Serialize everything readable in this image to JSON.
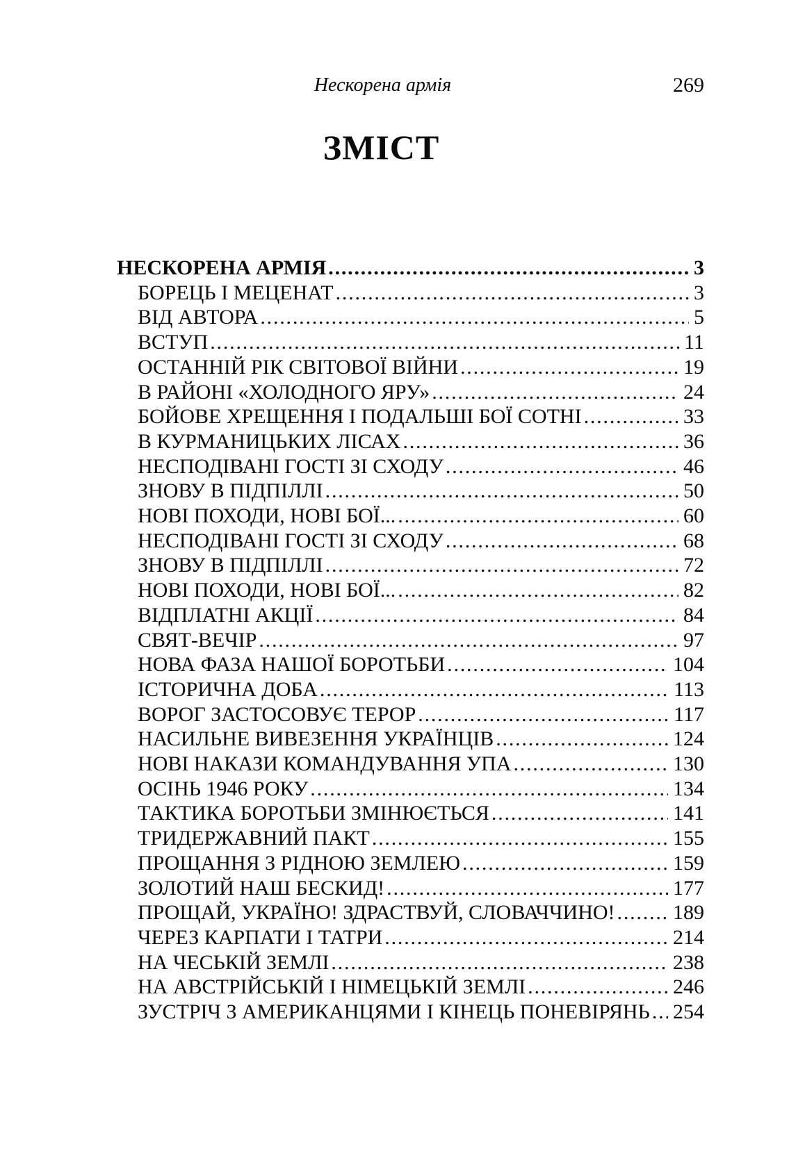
{
  "page": {
    "running_title": "Нескорена армія",
    "page_number": "269",
    "title": "ЗМІСТ"
  },
  "toc": {
    "entries": [
      {
        "label": "НЕСКОРЕНА АРМІЯ",
        "page": "3",
        "level": 0,
        "bold": true
      },
      {
        "label": "БОРЕЦЬ І МЕЦЕНАТ",
        "page": "3",
        "level": 1
      },
      {
        "label": "ВІД АВТОРА",
        "page": "5",
        "level": 1
      },
      {
        "label": "ВСТУП",
        "page": "11",
        "level": 1
      },
      {
        "label": "ОСТАННІЙ РІК СВІТОВОЇ ВІЙНИ",
        "page": "19",
        "level": 1
      },
      {
        "label": "В РАЙОНІ «ХОЛОДНОГО ЯРУ»",
        "page": "24",
        "level": 1
      },
      {
        "label": "БОЙОВЕ ХРЕЩЕННЯ І ПОДАЛЬШІ БОЇ СОТНІ",
        "page": "33",
        "level": 1
      },
      {
        "label": "В КУРМАНИЦЬКИХ ЛІСАХ",
        "page": "36",
        "level": 1
      },
      {
        "label": "НЕСПОДІВАНІ ГОСТІ ЗІ СХОДУ",
        "page": "46",
        "level": 1
      },
      {
        "label": "ЗНОВУ В ПІДПІЛЛІ",
        "page": "50",
        "level": 1
      },
      {
        "label": "НОВІ ПОХОДИ, НОВІ БОЇ...",
        "page": "60",
        "level": 1
      },
      {
        "label": "НЕСПОДІВАНІ ГОСТІ ЗІ СХОДУ",
        "page": "68",
        "level": 1
      },
      {
        "label": "ЗНОВУ В ПІДПІЛЛІ",
        "page": "72",
        "level": 1
      },
      {
        "label": "НОВІ ПОХОДИ, НОВІ БОЇ...",
        "page": "82",
        "level": 1
      },
      {
        "label": "ВІДПЛАТНІ АКЦІЇ",
        "page": "84",
        "level": 1
      },
      {
        "label": "СВЯТ-ВЕЧІР",
        "page": "97",
        "level": 1
      },
      {
        "label": "НОВА ФАЗА НАШОЇ БОРОТЬБИ",
        "page": "104",
        "level": 1
      },
      {
        "label": "ІСТОРИЧНА ДОБА",
        "page": "113",
        "level": 1
      },
      {
        "label": "ВОРОГ ЗАСТОСОВУЄ ТЕРОР",
        "page": "117",
        "level": 1
      },
      {
        "label": "НАСИЛЬНЕ ВИВЕЗЕННЯ УКРАЇНЦІВ",
        "page": "124",
        "level": 1
      },
      {
        "label": "НОВІ НАКАЗИ КОМАНДУВАННЯ УПА",
        "page": "130",
        "level": 1
      },
      {
        "label": "ОСІНЬ 1946 РОКУ",
        "page": "134",
        "level": 1
      },
      {
        "label": "ТАКТИКА БОРОТЬБИ ЗМІНЮЄТЬСЯ",
        "page": "141",
        "level": 1
      },
      {
        "label": "ТРИДЕРЖАВНИЙ ПАКТ",
        "page": "155",
        "level": 1
      },
      {
        "label": "ПРОЩАННЯ З РІДНОЮ ЗЕМЛЕЮ",
        "page": "159",
        "level": 1
      },
      {
        "label": "ЗОЛОТИЙ НАШ БЕСКИД!",
        "page": "177",
        "level": 1
      },
      {
        "label": "ПРОЩАЙ, УКРАЇНО! ЗДРАСТВУЙ, СЛОВАЧЧИНО!",
        "page": "189",
        "level": 1
      },
      {
        "label": "ЧЕРЕЗ КАРПАТИ І ТАТРИ",
        "page": "214",
        "level": 1
      },
      {
        "label": "НА ЧЕСЬКІЙ ЗЕМЛІ",
        "page": "238",
        "level": 1
      },
      {
        "label": "НА АВСТРІЙСЬКІЙ І НІМЕЦЬКІЙ ЗЕМЛІ",
        "page": "246",
        "level": 1
      },
      {
        "label": "ЗУСТРІЧ З АМЕРИКАНЦЯМИ І КІНЕЦЬ ПОНЕВІРЯНЬ",
        "page": "254",
        "level": 1
      }
    ]
  }
}
